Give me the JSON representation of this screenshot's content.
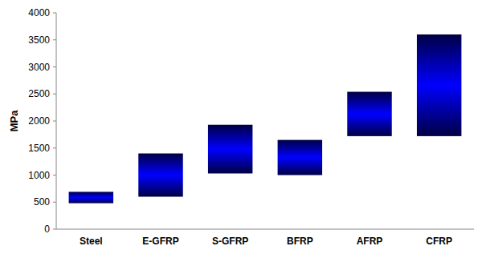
{
  "chart_data": {
    "type": "range",
    "y_label": "MPa",
    "categories": [
      "Steel",
      "E-GFRP",
      "S-GFRP",
      "BFRP",
      "AFRP",
      "CFRP"
    ],
    "low": [
      480,
      600,
      1030,
      1000,
      1720,
      1720
    ],
    "high": [
      690,
      1400,
      1930,
      1650,
      2540,
      3600
    ],
    "color": "#0000ff",
    "ylim": [
      0,
      4000
    ],
    "yticks": [
      0,
      500,
      1000,
      1500,
      2000,
      2500,
      3000,
      3500,
      4000
    ],
    "grid": false
  }
}
